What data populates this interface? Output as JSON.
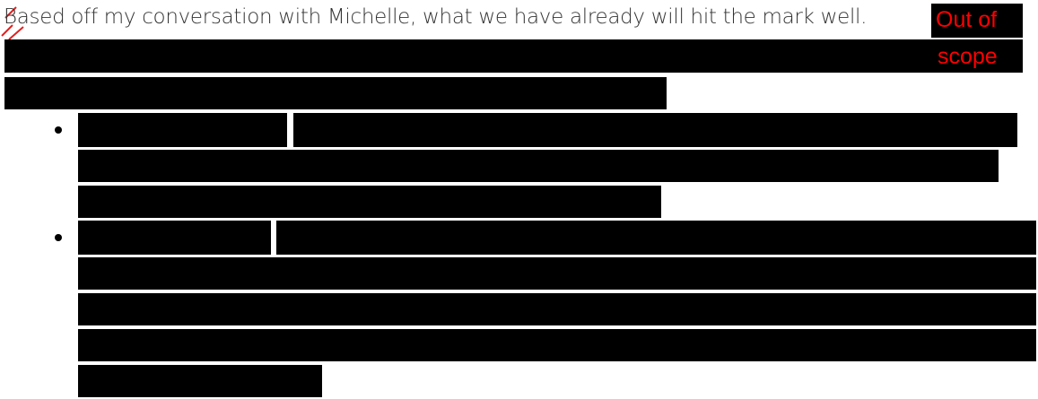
{
  "document": {
    "paragraph": "Based off my conversation with Michelle, what we have already will hit the mark well.",
    "redaction_label_lines": [
      "Out of",
      "scope"
    ]
  }
}
